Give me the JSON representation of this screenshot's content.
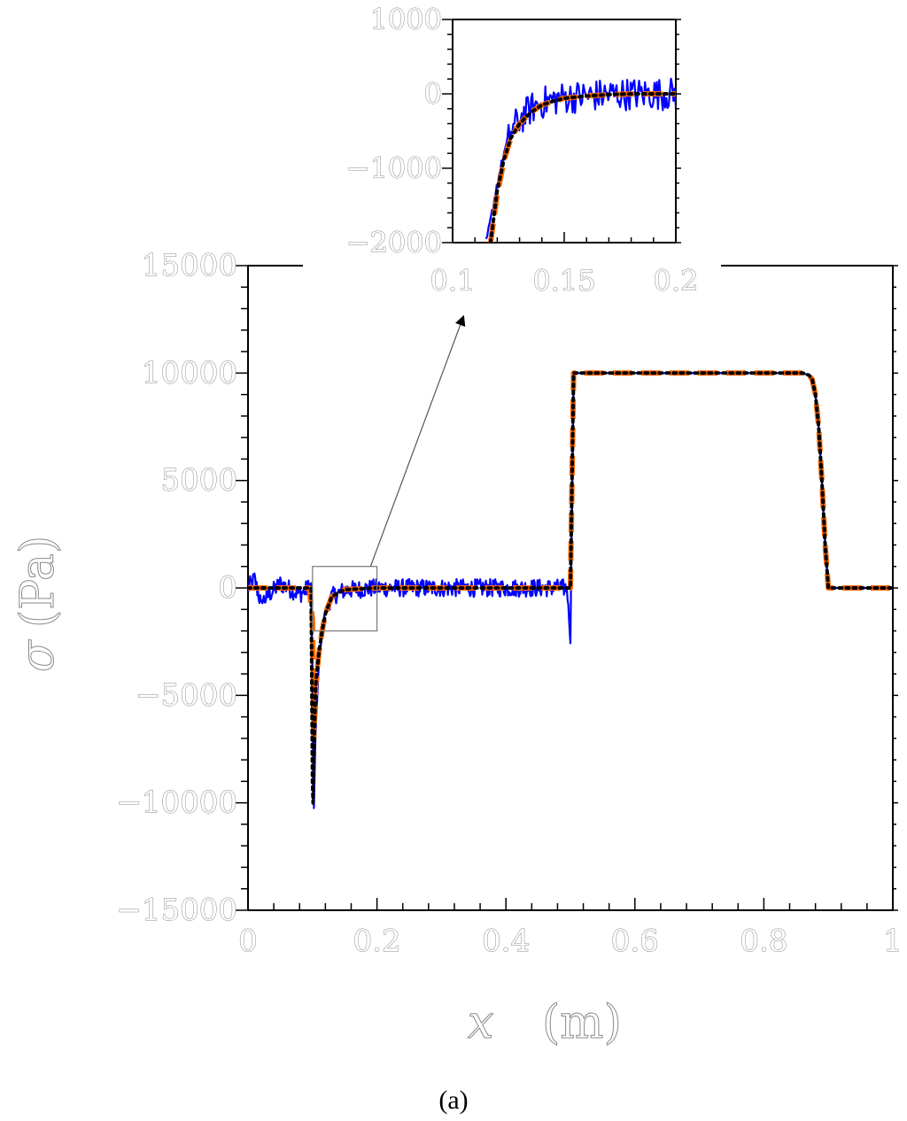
{
  "chart_data": [
    {
      "type": "line",
      "role": "main",
      "xlabel_symbol": "x",
      "xlabel_unit": "(m)",
      "ylabel_symbol": "σ",
      "ylabel_unit": "(Pa)",
      "xlim": [
        0,
        1
      ],
      "ylim": [
        -15000,
        15000
      ],
      "x_ticks": [
        0,
        0.2,
        0.4,
        0.6,
        0.8,
        1
      ],
      "x_tick_labels": [
        "0",
        "0.2",
        "0.4",
        "0.6",
        "0.8",
        "1"
      ],
      "y_ticks": [
        -15000,
        -10000,
        -5000,
        0,
        5000,
        10000,
        15000
      ],
      "y_tick_labels": [
        "−15000",
        "−10000",
        "−5000",
        "0",
        "5000",
        "10000",
        "15000"
      ],
      "grid": false,
      "legend": "none",
      "zoom_box": {
        "x": [
          0.1,
          0.2
        ],
        "y": [
          -2000,
          1000
        ]
      },
      "series": [
        {
          "color": "#0000ff",
          "style": "solid-noisy",
          "x": [
            0,
            0.01,
            0.02,
            0.05,
            0.08,
            0.098,
            0.1,
            0.102,
            0.105,
            0.11,
            0.115,
            0.12,
            0.13,
            0.15,
            0.2,
            0.3,
            0.4,
            0.49,
            0.495,
            0.5,
            0.505,
            0.52,
            0.6,
            0.7,
            0.8,
            0.86,
            0.87,
            0.875,
            0.88,
            0.885,
            0.89,
            0.895,
            0.9,
            0.95,
            1
          ],
          "y": [
            0,
            400,
            -700,
            200,
            -300,
            100,
            -4000,
            -10500,
            -6500,
            -3500,
            -2000,
            -1000,
            -400,
            -100,
            0,
            0,
            0,
            0,
            0,
            -2500,
            10000,
            10000,
            10000,
            10000,
            10000,
            10000,
            9900,
            9700,
            9000,
            7500,
            5000,
            2000,
            0,
            0,
            0
          ]
        },
        {
          "color": "#ff6600",
          "style": "dashed",
          "x": [
            0,
            0.05,
            0.095,
            0.1,
            0.102,
            0.105,
            0.11,
            0.115,
            0.12,
            0.13,
            0.15,
            0.2,
            0.3,
            0.4,
            0.495,
            0.5,
            0.505,
            0.52,
            0.6,
            0.7,
            0.8,
            0.86,
            0.87,
            0.875,
            0.88,
            0.885,
            0.89,
            0.895,
            0.9,
            0.95,
            1
          ],
          "y": [
            0,
            0,
            0,
            -1500,
            -7000,
            -4500,
            -3000,
            -2000,
            -1200,
            -400,
            -80,
            0,
            0,
            0,
            0,
            0,
            10000,
            10000,
            10000,
            10000,
            10000,
            10000,
            9900,
            9700,
            9000,
            7500,
            5000,
            2000,
            0,
            0,
            0
          ]
        },
        {
          "color": "#000000",
          "style": "dotted",
          "x": [
            0,
            0.05,
            0.098,
            0.1,
            0.101,
            0.102,
            0.105,
            0.11,
            0.115,
            0.12,
            0.13,
            0.15,
            0.2,
            0.3,
            0.4,
            0.495,
            0.5,
            0.505,
            0.52,
            0.6,
            0.7,
            0.8,
            0.86,
            0.87,
            0.875,
            0.88,
            0.885,
            0.89,
            0.895,
            0.9,
            0.95,
            1
          ],
          "y": [
            0,
            0,
            0,
            -9000,
            -10000,
            -8000,
            -4500,
            -3000,
            -2000,
            -1200,
            -400,
            -80,
            0,
            0,
            0,
            0,
            0,
            10000,
            10000,
            10000,
            10000,
            10000,
            10000,
            9900,
            9700,
            9000,
            7500,
            5000,
            2000,
            0,
            0,
            0
          ]
        }
      ]
    },
    {
      "type": "line",
      "role": "inset",
      "xlim": [
        0.1,
        0.2
      ],
      "ylim": [
        -2000,
        1000
      ],
      "x_ticks": [
        0.1,
        0.15,
        0.2
      ],
      "x_tick_labels": [
        "0.1",
        "0.15",
        "0.2"
      ],
      "y_ticks": [
        -2000,
        -1000,
        0,
        1000
      ],
      "y_tick_labels": [
        "−2000",
        "−1000",
        "0",
        "1000"
      ],
      "grid": false,
      "series": [
        {
          "color": "#0000ff",
          "style": "solid-noisy",
          "x": [
            0.115,
            0.117,
            0.12,
            0.123,
            0.126,
            0.13,
            0.135,
            0.14,
            0.145,
            0.15,
            0.16,
            0.17,
            0.18,
            0.19,
            0.2
          ],
          "y": [
            -2000,
            -1700,
            -1200,
            -800,
            -500,
            -350,
            -200,
            -120,
            -80,
            -50,
            -30,
            -10,
            0,
            0,
            0
          ]
        },
        {
          "color": "#ff6600",
          "style": "dashed",
          "x": [
            0.117,
            0.12,
            0.123,
            0.126,
            0.13,
            0.135,
            0.14,
            0.145,
            0.15,
            0.16,
            0.17,
            0.18,
            0.19,
            0.2
          ],
          "y": [
            -2000,
            -1350,
            -900,
            -600,
            -400,
            -250,
            -150,
            -100,
            -60,
            -30,
            -10,
            0,
            0,
            0
          ]
        },
        {
          "color": "#000000",
          "style": "dotted",
          "x": [
            0.117,
            0.12,
            0.123,
            0.126,
            0.13,
            0.135,
            0.14,
            0.145,
            0.15,
            0.16,
            0.17,
            0.18,
            0.19,
            0.2
          ],
          "y": [
            -2000,
            -1300,
            -880,
            -600,
            -400,
            -250,
            -150,
            -100,
            -60,
            -30,
            -10,
            0,
            0,
            0
          ]
        }
      ]
    }
  ],
  "caption": "(a)"
}
